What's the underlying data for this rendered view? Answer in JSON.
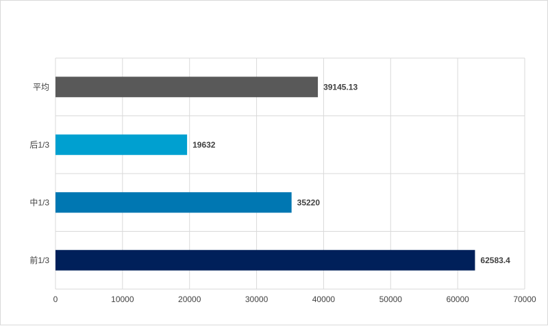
{
  "chart_data": {
    "type": "bar",
    "orientation": "horizontal",
    "title": "",
    "xlabel": "",
    "ylabel": "",
    "categories": [
      "平均",
      "后1/3",
      "中1/3",
      "前1/3"
    ],
    "values": [
      39145.13,
      19632,
      35220,
      62583.4
    ],
    "data_labels": [
      "39145.13",
      "19632",
      "35220",
      "62583.4"
    ],
    "colors": [
      "#595959",
      "#00a0d0",
      "#0077b2",
      "#00205a"
    ],
    "xlim": [
      0,
      70000
    ],
    "x_ticks": [
      0,
      10000,
      20000,
      30000,
      40000,
      50000,
      60000,
      70000
    ],
    "x_tick_labels": [
      "0",
      "10000",
      "20000",
      "30000",
      "40000",
      "50000",
      "60000",
      "70000"
    ],
    "grid": true,
    "legend": "none"
  }
}
